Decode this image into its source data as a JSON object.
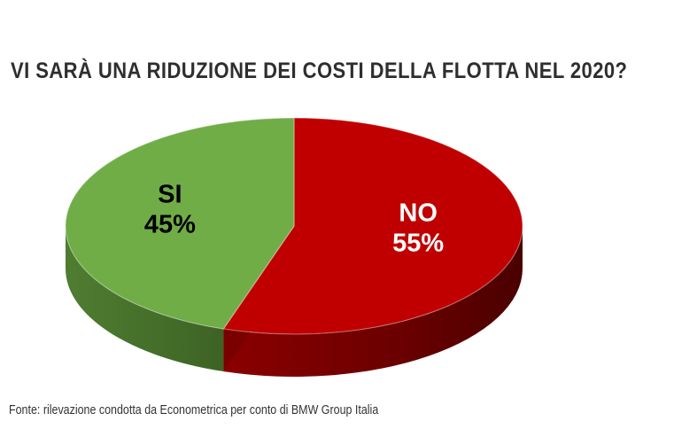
{
  "title": "VI SARÀ UNA RIDUZIONE DEI COSTI DELLA FLOTTA NEL 2020?",
  "source": "Fonte: rilevazione condotta da Econometrica per conto di BMW Group Italia",
  "chart_data": {
    "type": "pie",
    "title": "VI SARÀ UNA RIDUZIONE DEI COSTI DELLA FLOTTA NEL 2020?",
    "slices": [
      {
        "label": "NO",
        "value": 55,
        "value_label": "55%",
        "color": "#c00000",
        "side_color": "#7a0000",
        "text_color": "#ffffff"
      },
      {
        "label": "SI",
        "value": 45,
        "value_label": "45%",
        "color": "#70ad47",
        "side_color": "#46702c",
        "text_color": "#000000"
      }
    ],
    "style": "3d",
    "legend": "none"
  }
}
